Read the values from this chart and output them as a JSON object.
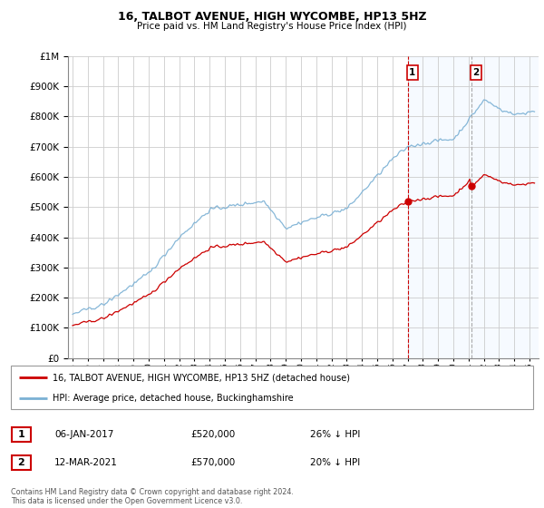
{
  "title": "16, TALBOT AVENUE, HIGH WYCOMBE, HP13 5HZ",
  "subtitle": "Price paid vs. HM Land Registry's House Price Index (HPI)",
  "ytick_values": [
    0,
    100000,
    200000,
    300000,
    400000,
    500000,
    600000,
    700000,
    800000,
    900000,
    1000000
  ],
  "ylim": [
    0,
    1000000
  ],
  "legend_property_label": "16, TALBOT AVENUE, HIGH WYCOMBE, HP13 5HZ (detached house)",
  "legend_hpi_label": "HPI: Average price, detached house, Buckinghamshire",
  "annotation1_label": "1",
  "annotation1_date": "06-JAN-2017",
  "annotation1_price": "£520,000",
  "annotation1_pct": "26% ↓ HPI",
  "annotation2_label": "2",
  "annotation2_date": "12-MAR-2021",
  "annotation2_price": "£570,000",
  "annotation2_pct": "20% ↓ HPI",
  "footer": "Contains HM Land Registry data © Crown copyright and database right 2024.\nThis data is licensed under the Open Government Licence v3.0.",
  "property_color": "#cc0000",
  "hpi_color": "#7ab0d4",
  "vline1_color": "#cc0000",
  "vline2_color": "#aaaaaa",
  "shaded_region_color": "#ddeeff",
  "bg_color": "#ffffff",
  "grid_color": "#cccccc",
  "sale1_x": 2017.0,
  "sale1_y": 520000,
  "sale2_x": 2021.17,
  "sale2_y": 570000,
  "xtick_years": [
    1995,
    1996,
    1997,
    1998,
    1999,
    2000,
    2001,
    2002,
    2003,
    2004,
    2005,
    2006,
    2007,
    2008,
    2009,
    2010,
    2011,
    2012,
    2013,
    2014,
    2015,
    2016,
    2017,
    2018,
    2019,
    2020,
    2021,
    2022,
    2023,
    2024,
    2025
  ]
}
